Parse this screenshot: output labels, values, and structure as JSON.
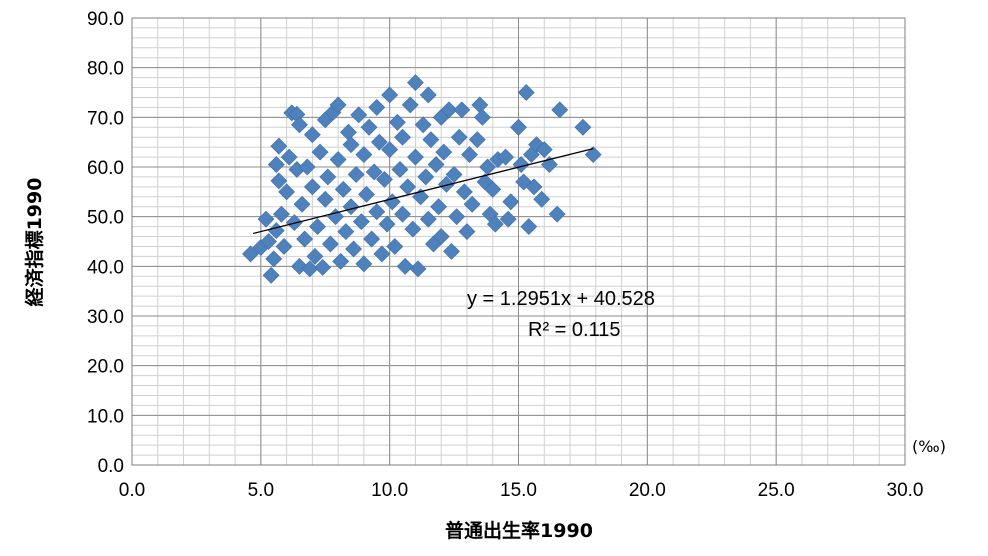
{
  "chart_data": {
    "type": "scatter",
    "title": "",
    "xlabel": "普通出生率1990",
    "ylabel": "経済指標1990",
    "x_unit": "(‰)",
    "xlim": [
      0,
      30
    ],
    "ylim": [
      0,
      90
    ],
    "x_major_ticks": [
      "0.0",
      "5.0",
      "10.0",
      "15.0",
      "20.0",
      "25.0",
      "30.0"
    ],
    "y_major_ticks": [
      "0.0",
      "10.0",
      "20.0",
      "30.0",
      "40.0",
      "50.0",
      "60.0",
      "70.0",
      "80.0",
      "90.0"
    ],
    "grid": true,
    "legend": "none",
    "marker_color": "#4f81bd",
    "trendline": {
      "equation": "y = 1.2951x + 40.528",
      "r_squared": "R² = 0.115",
      "slope": 1.2951,
      "intercept": 40.528,
      "x_range": [
        4.7,
        17.9
      ],
      "color": "#000000"
    },
    "points": [
      [
        4.6,
        42.5
      ],
      [
        5.0,
        43.8
      ],
      [
        5.2,
        49.5
      ],
      [
        5.3,
        45.0
      ],
      [
        5.4,
        38.2
      ],
      [
        5.5,
        41.5
      ],
      [
        5.6,
        47.2
      ],
      [
        5.6,
        60.5
      ],
      [
        5.7,
        64.2
      ],
      [
        5.7,
        57.2
      ],
      [
        5.8,
        50.5
      ],
      [
        5.9,
        44.0
      ],
      [
        6.0,
        55.0
      ],
      [
        6.1,
        62.0
      ],
      [
        6.2,
        70.9
      ],
      [
        6.3,
        48.8
      ],
      [
        6.4,
        70.6
      ],
      [
        6.4,
        59.5
      ],
      [
        6.5,
        40.0
      ],
      [
        6.5,
        68.5
      ],
      [
        6.6,
        52.5
      ],
      [
        6.7,
        45.5
      ],
      [
        6.8,
        60.0
      ],
      [
        6.9,
        39.5
      ],
      [
        7.0,
        56.0
      ],
      [
        7.0,
        66.5
      ],
      [
        7.1,
        42.0
      ],
      [
        7.2,
        48.0
      ],
      [
        7.3,
        63.0
      ],
      [
        7.4,
        39.8
      ],
      [
        7.5,
        53.5
      ],
      [
        7.5,
        69.5
      ],
      [
        7.6,
        58.0
      ],
      [
        7.7,
        44.5
      ],
      [
        7.8,
        71.0
      ],
      [
        7.9,
        50.0
      ],
      [
        8.0,
        72.5
      ],
      [
        8.0,
        61.5
      ],
      [
        8.1,
        41.0
      ],
      [
        8.2,
        55.5
      ],
      [
        8.3,
        47.0
      ],
      [
        8.4,
        67.0
      ],
      [
        8.5,
        52.0
      ],
      [
        8.5,
        64.5
      ],
      [
        8.6,
        43.5
      ],
      [
        8.7,
        58.5
      ],
      [
        8.8,
        70.5
      ],
      [
        8.9,
        49.0
      ],
      [
        9.0,
        62.5
      ],
      [
        9.0,
        40.5
      ],
      [
        9.1,
        54.5
      ],
      [
        9.2,
        68.0
      ],
      [
        9.3,
        45.5
      ],
      [
        9.4,
        59.0
      ],
      [
        9.5,
        72.0
      ],
      [
        9.5,
        51.0
      ],
      [
        9.6,
        65.0
      ],
      [
        9.7,
        42.5
      ],
      [
        9.8,
        57.5
      ],
      [
        9.9,
        48.5
      ],
      [
        10.0,
        74.5
      ],
      [
        10.0,
        63.5
      ],
      [
        10.1,
        53.0
      ],
      [
        10.2,
        44.0
      ],
      [
        10.3,
        69.0
      ],
      [
        10.4,
        59.5
      ],
      [
        10.5,
        50.5
      ],
      [
        10.5,
        66.0
      ],
      [
        10.6,
        40.0
      ],
      [
        10.7,
        56.0
      ],
      [
        10.8,
        72.5
      ],
      [
        10.9,
        47.5
      ],
      [
        11.0,
        77.0
      ],
      [
        11.0,
        62.0
      ],
      [
        11.1,
        39.5
      ],
      [
        11.2,
        54.0
      ],
      [
        11.3,
        68.5
      ],
      [
        11.4,
        58.0
      ],
      [
        11.5,
        74.5
      ],
      [
        11.5,
        49.5
      ],
      [
        11.6,
        65.5
      ],
      [
        11.7,
        44.5
      ],
      [
        11.8,
        60.5
      ],
      [
        11.9,
        52.0
      ],
      [
        12.0,
        70.0
      ],
      [
        12.0,
        46.0
      ],
      [
        12.1,
        63.0
      ],
      [
        12.2,
        56.5
      ],
      [
        12.3,
        71.5
      ],
      [
        12.4,
        43.0
      ],
      [
        12.5,
        58.5
      ],
      [
        12.6,
        50.0
      ],
      [
        12.7,
        66.0
      ],
      [
        12.8,
        71.5
      ],
      [
        12.9,
        55.0
      ],
      [
        13.0,
        47.0
      ],
      [
        13.1,
        62.5
      ],
      [
        13.2,
        52.5
      ],
      [
        13.4,
        65.5
      ],
      [
        13.5,
        72.5
      ],
      [
        13.6,
        70.0
      ],
      [
        13.7,
        57.0
      ],
      [
        13.8,
        60.0
      ],
      [
        13.9,
        50.5
      ],
      [
        14.0,
        55.5
      ],
      [
        14.1,
        48.5
      ],
      [
        14.2,
        61.5
      ],
      [
        14.5,
        62.0
      ],
      [
        14.6,
        49.5
      ],
      [
        14.7,
        53.0
      ],
      [
        15.0,
        68.0
      ],
      [
        15.1,
        60.5
      ],
      [
        15.2,
        57.0
      ],
      [
        15.3,
        75.0
      ],
      [
        15.4,
        48.0
      ],
      [
        15.5,
        62.5
      ],
      [
        15.6,
        56.0
      ],
      [
        15.7,
        64.5
      ],
      [
        15.9,
        53.5
      ],
      [
        16.0,
        63.5
      ],
      [
        16.2,
        60.5
      ],
      [
        16.5,
        50.5
      ],
      [
        16.6,
        71.5
      ],
      [
        17.5,
        68.0
      ],
      [
        17.9,
        62.5
      ]
    ]
  }
}
